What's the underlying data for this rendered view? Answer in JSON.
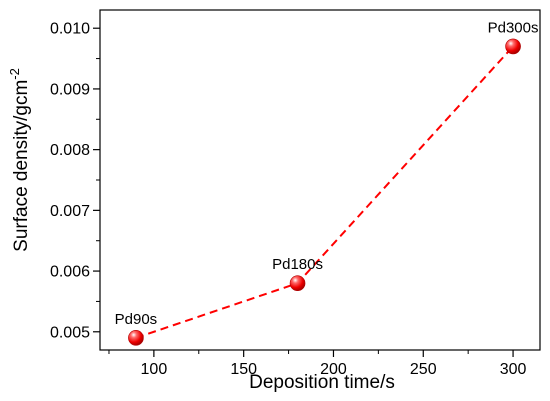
{
  "chart_data": {
    "type": "scatter",
    "xlabel": "Deposition time/s",
    "ylabel_text": "Surface density/gcm",
    "ylabel_sup": "-2",
    "xlim": [
      70,
      315
    ],
    "ylim": [
      0.0047,
      0.0103
    ],
    "x_ticks": [
      "100",
      "150",
      "200",
      "250",
      "300"
    ],
    "y_ticks": [
      "0.005",
      "0.006",
      "0.007",
      "0.008",
      "0.009",
      "0.010"
    ],
    "line_style": "dashed",
    "grid": false,
    "series": [
      {
        "color": "#ff0000",
        "points": [
          {
            "x": 90,
            "y": 0.0049,
            "label": "Pd90s"
          },
          {
            "x": 180,
            "y": 0.0058,
            "label": "Pd180s"
          },
          {
            "x": 300,
            "y": 0.0097,
            "label": "Pd300s"
          }
        ]
      }
    ]
  }
}
